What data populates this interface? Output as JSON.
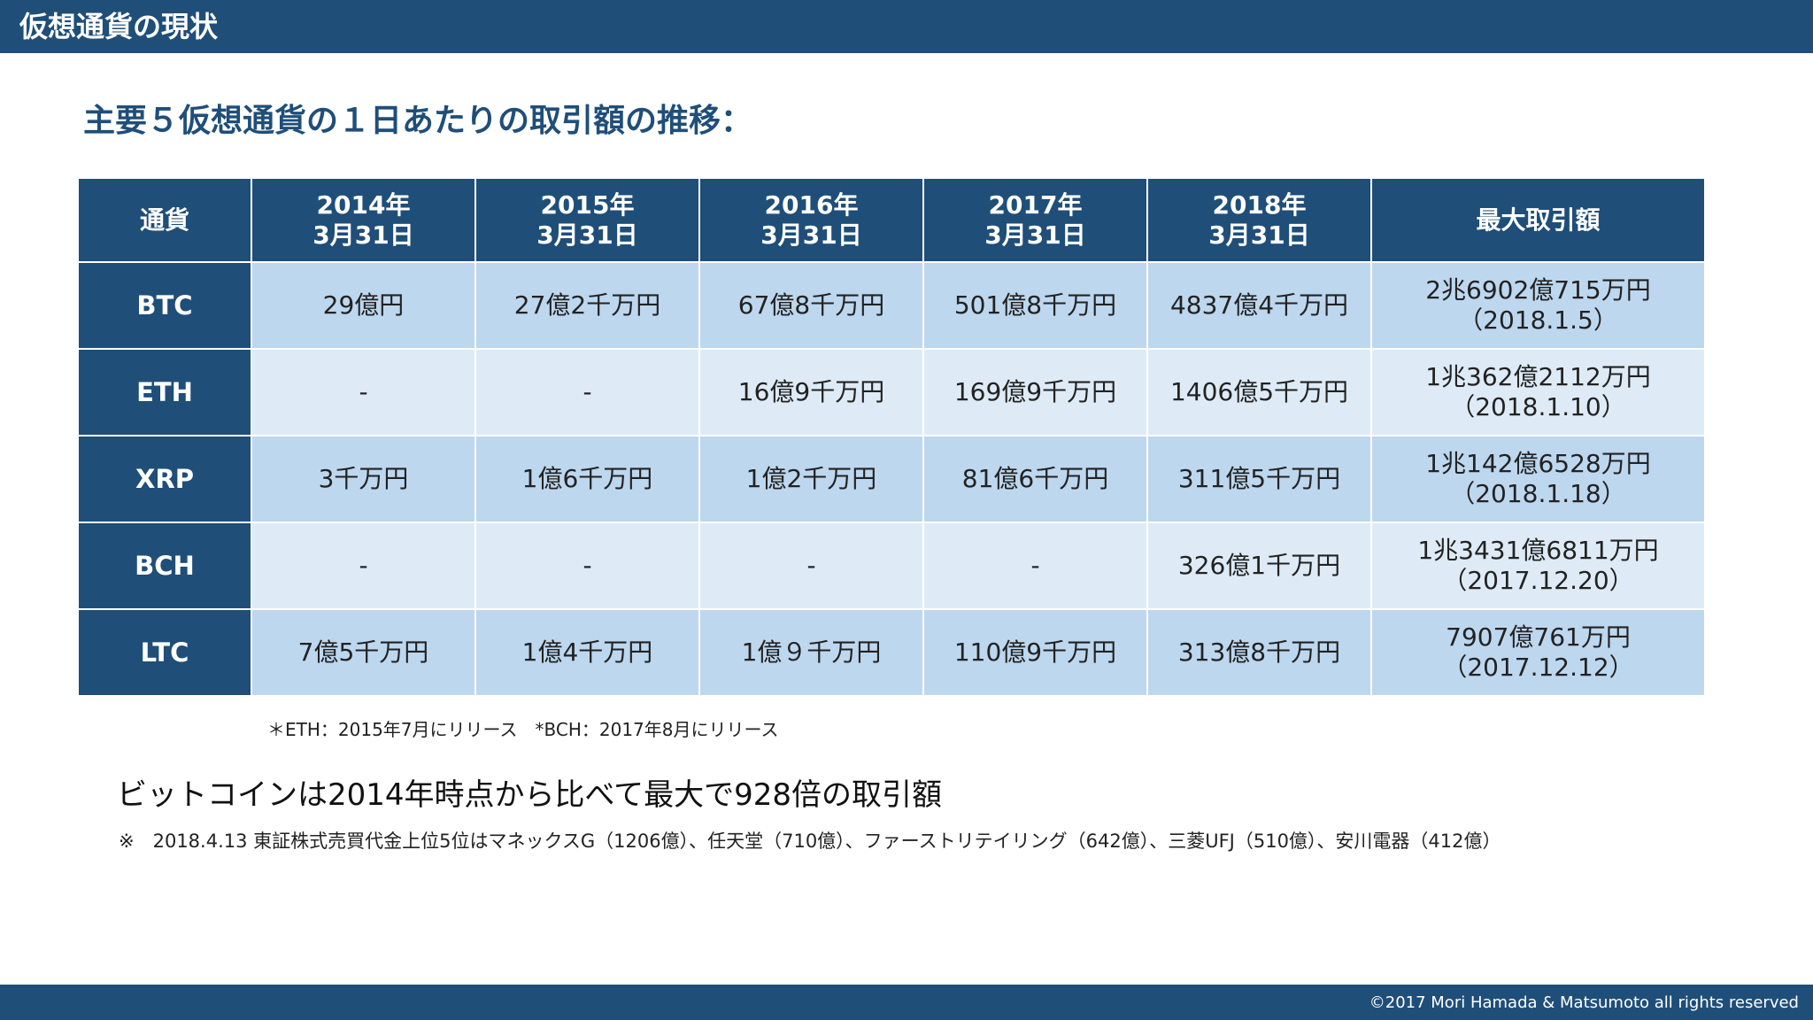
{
  "header": {
    "title": "仮想通貨の現状"
  },
  "subtitle": "主要５仮想通貨の１日あたりの取引額の推移：",
  "table": {
    "columns": [
      {
        "line1": "通貨",
        "line2": ""
      },
      {
        "line1": "2014年",
        "line2": "3月31日"
      },
      {
        "line1": "2015年",
        "line2": "3月31日"
      },
      {
        "line1": "2016年",
        "line2": "3月31日"
      },
      {
        "line1": "2017年",
        "line2": "3月31日"
      },
      {
        "line1": "2018年",
        "line2": "3月31日"
      },
      {
        "line1": "最大取引額",
        "line2": ""
      }
    ],
    "rows": [
      {
        "currency": "BTC",
        "values": [
          "29億円",
          "27億2千万円",
          "67億8千万円",
          "501億8千万円",
          "4837億4千万円"
        ],
        "max_amount": "2兆6902億715万円",
        "max_date": "（2018.1.5）"
      },
      {
        "currency": "ETH",
        "values": [
          "-",
          "-",
          "16億9千万円",
          "169億9千万円",
          "1406億5千万円"
        ],
        "max_amount": "1兆362億2112万円",
        "max_date": "（2018.1.10）"
      },
      {
        "currency": "XRP",
        "values": [
          "3千万円",
          "1億6千万円",
          "1億2千万円",
          "81億6千万円",
          "311億5千万円"
        ],
        "max_amount": "1兆142億6528万円",
        "max_date": "（2018.1.18）"
      },
      {
        "currency": "BCH",
        "values": [
          "-",
          "-",
          "-",
          "-",
          "326億1千万円"
        ],
        "max_amount": "1兆3431億6811万円",
        "max_date": "（2017.12.20）"
      },
      {
        "currency": "LTC",
        "values": [
          "7億5千万円",
          "1億4千万円",
          "1億９千万円",
          "110億9千万円",
          "313億8千万円"
        ],
        "max_amount": "7907億761万円",
        "max_date": "（2017.12.12）"
      }
    ]
  },
  "footnote": "＊ETH：2015年7月にリリース　*BCH：2017年8月にリリース",
  "headline": "ビットコインは2014年時点から比べて最大で928倍の取引額",
  "note": "※　2018.4.13 東証株式売買代金上位5位はマネックスG（1206億）、任天堂（710億）、ファーストリテイリング（642億）、三菱UFJ（510億）、安川電器（412億）",
  "footer": {
    "copyright": "©2017 Mori Hamada & Matsumoto all rights reserved"
  },
  "colors": {
    "brand_navy": "#1f4e79",
    "row_dark": "#bdd7ee",
    "row_light": "#deebf7"
  }
}
